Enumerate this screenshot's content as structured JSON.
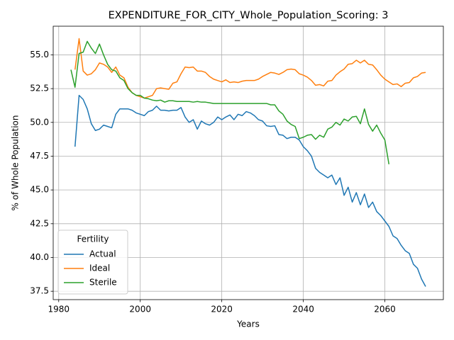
{
  "chart_data": {
    "type": "line",
    "title": "EXPENDITURE_FOR_CITY_Whole_Population_Scoring: 3",
    "xlabel": "Years",
    "ylabel": "% of Whole Population",
    "legend_title": "Fertility",
    "legend_loc": "lower left",
    "grid": true,
    "xlim": [
      1978.65,
      2074.35
    ],
    "xticks": [
      1980,
      2000,
      2020,
      2040,
      2060
    ],
    "ylim": [
      36.88,
      57.12
    ],
    "yticks": [
      37.5,
      {
        "value": 40,
        "label": "40.0"
      },
      42.5,
      {
        "value": 45,
        "label": "45.0"
      },
      47.5,
      {
        "value": 50,
        "label": "50.0"
      },
      52.5,
      {
        "value": 55,
        "label": "55.0"
      }
    ],
    "x": [
      1983,
      1984,
      1985,
      1986,
      1987,
      1988,
      1989,
      1990,
      1991,
      1992,
      1993,
      1994,
      1995,
      1996,
      1997,
      1998,
      1999,
      2000,
      2001,
      2002,
      2003,
      2004,
      2005,
      2006,
      2007,
      2008,
      2009,
      2010,
      2011,
      2012,
      2013,
      2014,
      2015,
      2016,
      2017,
      2018,
      2019,
      2020,
      2021,
      2022,
      2023,
      2024,
      2025,
      2026,
      2027,
      2028,
      2029,
      2030,
      2031,
      2032,
      2033,
      2034,
      2035,
      2036,
      2037,
      2038,
      2039,
      2040,
      2041,
      2042,
      2043,
      2044,
      2045,
      2046,
      2047,
      2048,
      2049,
      2050,
      2051,
      2052,
      2053,
      2054,
      2055,
      2056,
      2057,
      2058,
      2059,
      2060,
      2061,
      2062,
      2063,
      2064,
      2065,
      2066,
      2067,
      2068,
      2069,
      2070
    ],
    "series": [
      {
        "name": "Actual",
        "color": "#1f77b4",
        "values": [
          null,
          48.2,
          52.0,
          51.7,
          51.0,
          49.9,
          49.4,
          49.5,
          49.8,
          49.7,
          49.6,
          50.6,
          51.0,
          51.0,
          51.0,
          50.9,
          50.7,
          50.6,
          50.5,
          50.8,
          50.9,
          51.2,
          50.9,
          50.9,
          50.85,
          50.9,
          50.9,
          51.1,
          50.4,
          50.0,
          50.2,
          49.5,
          50.1,
          49.9,
          49.8,
          50.0,
          50.4,
          50.2,
          50.4,
          50.55,
          50.2,
          50.6,
          50.5,
          50.8,
          50.7,
          50.5,
          50.2,
          50.1,
          49.75,
          49.7,
          49.75,
          49.1,
          49.05,
          48.8,
          48.9,
          48.9,
          48.7,
          48.2,
          47.9,
          47.5,
          46.6,
          46.3,
          46.1,
          45.9,
          46.1,
          45.4,
          45.9,
          44.6,
          45.2,
          44.1,
          44.8,
          43.9,
          44.7,
          43.7,
          44.1,
          43.4,
          43.1,
          42.7,
          42.3,
          41.6,
          41.4,
          40.9,
          40.5,
          40.3,
          39.5,
          39.2,
          38.4,
          37.85
        ]
      },
      {
        "name": "Ideal",
        "color": "#ff7f0e",
        "values": [
          null,
          53.9,
          56.2,
          53.8,
          53.5,
          53.6,
          53.9,
          54.4,
          54.3,
          54.1,
          53.7,
          54.1,
          53.5,
          53.3,
          52.6,
          52.2,
          52.0,
          51.9,
          51.8,
          51.9,
          52.0,
          52.5,
          52.55,
          52.5,
          52.45,
          52.9,
          53.0,
          53.6,
          54.1,
          54.05,
          54.1,
          53.8,
          53.8,
          53.7,
          53.4,
          53.2,
          53.1,
          53.0,
          53.15,
          52.95,
          53.0,
          52.95,
          53.05,
          53.1,
          53.1,
          53.1,
          53.2,
          53.4,
          53.55,
          53.7,
          53.65,
          53.55,
          53.7,
          53.9,
          53.95,
          53.9,
          53.6,
          53.5,
          53.35,
          53.1,
          52.75,
          52.8,
          52.7,
          53.05,
          53.1,
          53.5,
          53.75,
          53.95,
          54.3,
          54.35,
          54.6,
          54.4,
          54.6,
          54.3,
          54.25,
          53.9,
          53.5,
          53.2,
          53.0,
          52.8,
          52.85,
          52.65,
          52.9,
          52.95,
          53.3,
          53.4,
          53.65,
          53.7
        ]
      },
      {
        "name": "Sterile",
        "color": "#2ca02c",
        "values": [
          53.9,
          52.6,
          55.1,
          55.2,
          56.0,
          55.5,
          55.1,
          55.8,
          55.0,
          54.3,
          53.9,
          53.8,
          53.3,
          53.1,
          52.5,
          52.2,
          52.0,
          52.0,
          51.8,
          51.75,
          51.65,
          51.6,
          51.65,
          51.5,
          51.6,
          51.6,
          51.55,
          51.55,
          51.55,
          51.55,
          51.5,
          51.55,
          51.5,
          51.5,
          51.45,
          51.4,
          51.4,
          51.4,
          51.4,
          51.4,
          51.4,
          51.4,
          51.4,
          51.4,
          51.4,
          51.4,
          51.4,
          51.4,
          51.4,
          51.3,
          51.3,
          50.85,
          50.6,
          50.1,
          49.85,
          49.7,
          48.8,
          48.9,
          49.05,
          49.1,
          48.75,
          49.05,
          48.9,
          49.5,
          49.65,
          50.0,
          49.8,
          50.25,
          50.1,
          50.4,
          50.45,
          49.9,
          51.0,
          49.85,
          49.35,
          49.8,
          49.2,
          48.7,
          46.9,
          null,
          null,
          null,
          null,
          null,
          null,
          null,
          null,
          null
        ]
      }
    ]
  }
}
